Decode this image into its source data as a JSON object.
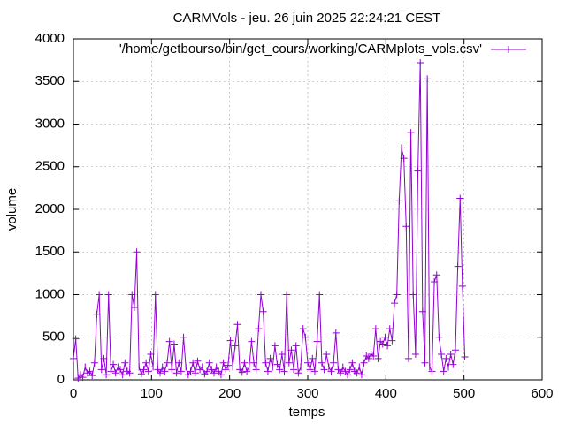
{
  "chart_data": {
    "type": "line",
    "title": "CARMVols - jeu. 26 juin 2025 22:24:21 CEST",
    "xlabel": "temps",
    "ylabel": "volume",
    "xlim": [
      0,
      600
    ],
    "ylim": [
      0,
      4000
    ],
    "xticks": [
      0,
      100,
      200,
      300,
      400,
      500,
      600
    ],
    "yticks": [
      0,
      500,
      1000,
      1500,
      2000,
      2500,
      3000,
      3500,
      4000
    ],
    "grid": true,
    "legend": "top-right",
    "marker": "plus",
    "x": [
      0,
      3,
      6,
      9,
      12,
      15,
      18,
      21,
      24,
      27,
      30,
      33,
      36,
      39,
      42,
      45,
      48,
      51,
      54,
      57,
      60,
      63,
      66,
      69,
      72,
      75,
      78,
      81,
      84,
      87,
      90,
      93,
      96,
      99,
      102,
      105,
      108,
      111,
      114,
      117,
      120,
      123,
      126,
      129,
      132,
      135,
      138,
      141,
      144,
      147,
      150,
      153,
      156,
      159,
      162,
      165,
      168,
      171,
      174,
      177,
      180,
      183,
      186,
      189,
      192,
      195,
      198,
      201,
      204,
      207,
      210,
      213,
      216,
      219,
      222,
      225,
      228,
      231,
      234,
      237,
      240,
      243,
      246,
      249,
      252,
      255,
      258,
      261,
      264,
      267,
      270,
      273,
      276,
      279,
      282,
      285,
      288,
      291,
      294,
      297,
      300,
      303,
      306,
      309,
      312,
      315,
      318,
      321,
      324,
      327,
      330,
      333,
      336,
      339,
      342,
      345,
      348,
      351,
      354,
      357,
      360,
      363,
      366,
      369,
      372,
      375,
      378,
      381,
      384,
      387,
      390,
      393,
      396,
      399,
      402,
      405,
      408,
      411,
      414,
      417,
      420,
      423,
      426,
      429,
      432,
      435,
      438,
      441,
      444,
      447,
      450,
      453,
      456,
      459,
      462,
      465,
      468,
      471,
      474,
      477,
      480,
      483,
      486,
      489,
      492,
      495,
      498,
      501
    ],
    "series": [
      {
        "name": "'/home/getbourso/bin/get_cours/working/CARMplots_vols.csv'",
        "color": "#9400d3",
        "values": [
          250,
          480,
          20,
          60,
          30,
          150,
          80,
          100,
          50,
          200,
          770,
          1000,
          120,
          250,
          60,
          1000,
          100,
          180,
          80,
          150,
          120,
          60,
          200,
          100,
          80,
          1000,
          850,
          1500,
          150,
          70,
          120,
          200,
          100,
          300,
          150,
          1000,
          120,
          80,
          150,
          100,
          200,
          450,
          120,
          420,
          80,
          200,
          100,
          500,
          150,
          60,
          100,
          200,
          80,
          220,
          120,
          150,
          70,
          100,
          200,
          120,
          80,
          150,
          100,
          60,
          200,
          120,
          170,
          460,
          150,
          400,
          650,
          120,
          90,
          200,
          100,
          150,
          450,
          200,
          120,
          600,
          1000,
          800,
          200,
          100,
          250,
          150,
          400,
          180,
          120,
          300,
          100,
          1000,
          200,
          350,
          120,
          400,
          80,
          150,
          600,
          500,
          200,
          120,
          250,
          100,
          450,
          1000,
          200,
          120,
          300,
          150,
          100,
          200,
          550,
          120,
          80,
          150,
          100,
          60,
          120,
          200,
          100,
          80,
          150,
          60,
          200,
          280,
          250,
          300,
          280,
          600,
          250,
          450,
          420,
          500,
          400,
          600,
          460,
          900,
          1000,
          2100,
          2720,
          2600,
          1800,
          250,
          2900,
          1000,
          300,
          2450,
          3720,
          800,
          200,
          3530,
          150,
          100,
          1150,
          1230,
          500,
          300,
          100,
          250,
          150,
          300,
          180,
          350,
          1330,
          2130,
          1100,
          270
        ]
      }
    ]
  }
}
